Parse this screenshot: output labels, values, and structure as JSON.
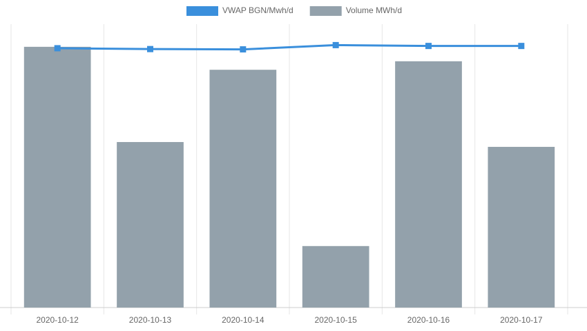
{
  "chart_data": {
    "type": "bar-line",
    "categories": [
      "2020-10-12",
      "2020-10-13",
      "2020-10-14",
      "2020-10-15",
      "2020-10-16",
      "2020-10-17"
    ],
    "series": [
      {
        "name": "VWAP BGN/Mwh/d",
        "type": "line",
        "axis": "y2",
        "color": "#3a8fdc",
        "values": [
          91.5,
          91.2,
          91.1,
          92.6,
          92.3,
          92.3
        ]
      },
      {
        "name": "Volume MWh/d",
        "type": "bar",
        "color": "#93a1ab",
        "values": [
          92.0,
          58.4,
          83.9,
          21.7,
          86.9,
          56.7
        ]
      }
    ],
    "ylim": [
      0,
      100
    ],
    "y2lim": [
      0,
      100
    ]
  }
}
